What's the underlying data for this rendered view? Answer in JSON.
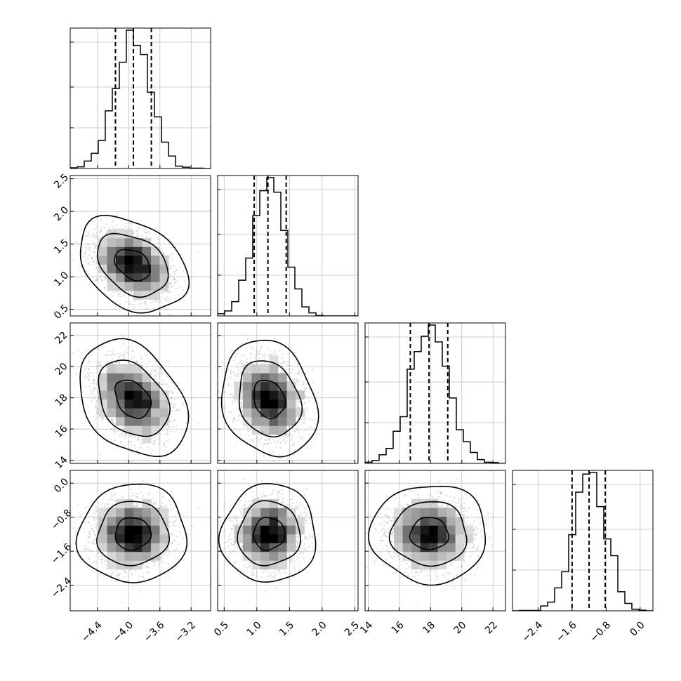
{
  "chart_data": {
    "type": "corner",
    "parameters": 4,
    "colors": {
      "line": "#000000",
      "grid": "#bfbfbf",
      "scatter": "#999999",
      "frame": "#000000"
    },
    "dims": [
      {
        "range": [
          -4.75,
          -2.95
        ],
        "ticks": [
          -4.4,
          -4.0,
          -3.6,
          -3.2
        ],
        "tick_labels": [
          "−4.4",
          "−4.0",
          "−3.6",
          "−3.2"
        ],
        "quantiles": [
          -4.17,
          -3.94,
          -3.71
        ],
        "mean": -3.94,
        "sd": 0.23
      },
      {
        "range": [
          0.4,
          2.55
        ],
        "ticks": [
          0.5,
          1.0,
          1.5,
          2.0,
          2.5
        ],
        "tick_labels": [
          "0.5",
          "1.0",
          "1.5",
          "2.0",
          "2.5"
        ],
        "quantiles": [
          0.96,
          1.17,
          1.45
        ],
        "mean": 1.19,
        "sd": 0.24
      },
      {
        "range": [
          13.8,
          22.8
        ],
        "ticks": [
          14,
          16,
          18,
          20,
          22
        ],
        "tick_labels": [
          "14",
          "16",
          "18",
          "20",
          "22"
        ],
        "quantiles": [
          16.7,
          17.9,
          19.1
        ],
        "mean": 17.9,
        "sd": 1.2
      },
      {
        "range": [
          -3.0,
          0.3
        ],
        "ticks": [
          -2.4,
          -1.6,
          -0.8,
          0.0
        ],
        "tick_labels": [
          "−2.4",
          "−1.6",
          "−0.8",
          "0.0"
        ],
        "quantiles": [
          -1.6,
          -1.2,
          -0.82
        ],
        "mean": -1.2,
        "sd": 0.38
      }
    ],
    "correlations": [
      {
        "pair": [
          1,
          0
        ],
        "rho": -0.35
      },
      {
        "pair": [
          2,
          0
        ],
        "rho": -0.3
      },
      {
        "pair": [
          2,
          1
        ],
        "rho": -0.2
      },
      {
        "pair": [
          3,
          0
        ],
        "rho": -0.05
      },
      {
        "pair": [
          3,
          1
        ],
        "rho": 0.05
      },
      {
        "pair": [
          3,
          2
        ],
        "rho": 0.05
      }
    ],
    "grid": "on",
    "density_levels": [
      0.39,
      0.86,
      0.99
    ]
  }
}
